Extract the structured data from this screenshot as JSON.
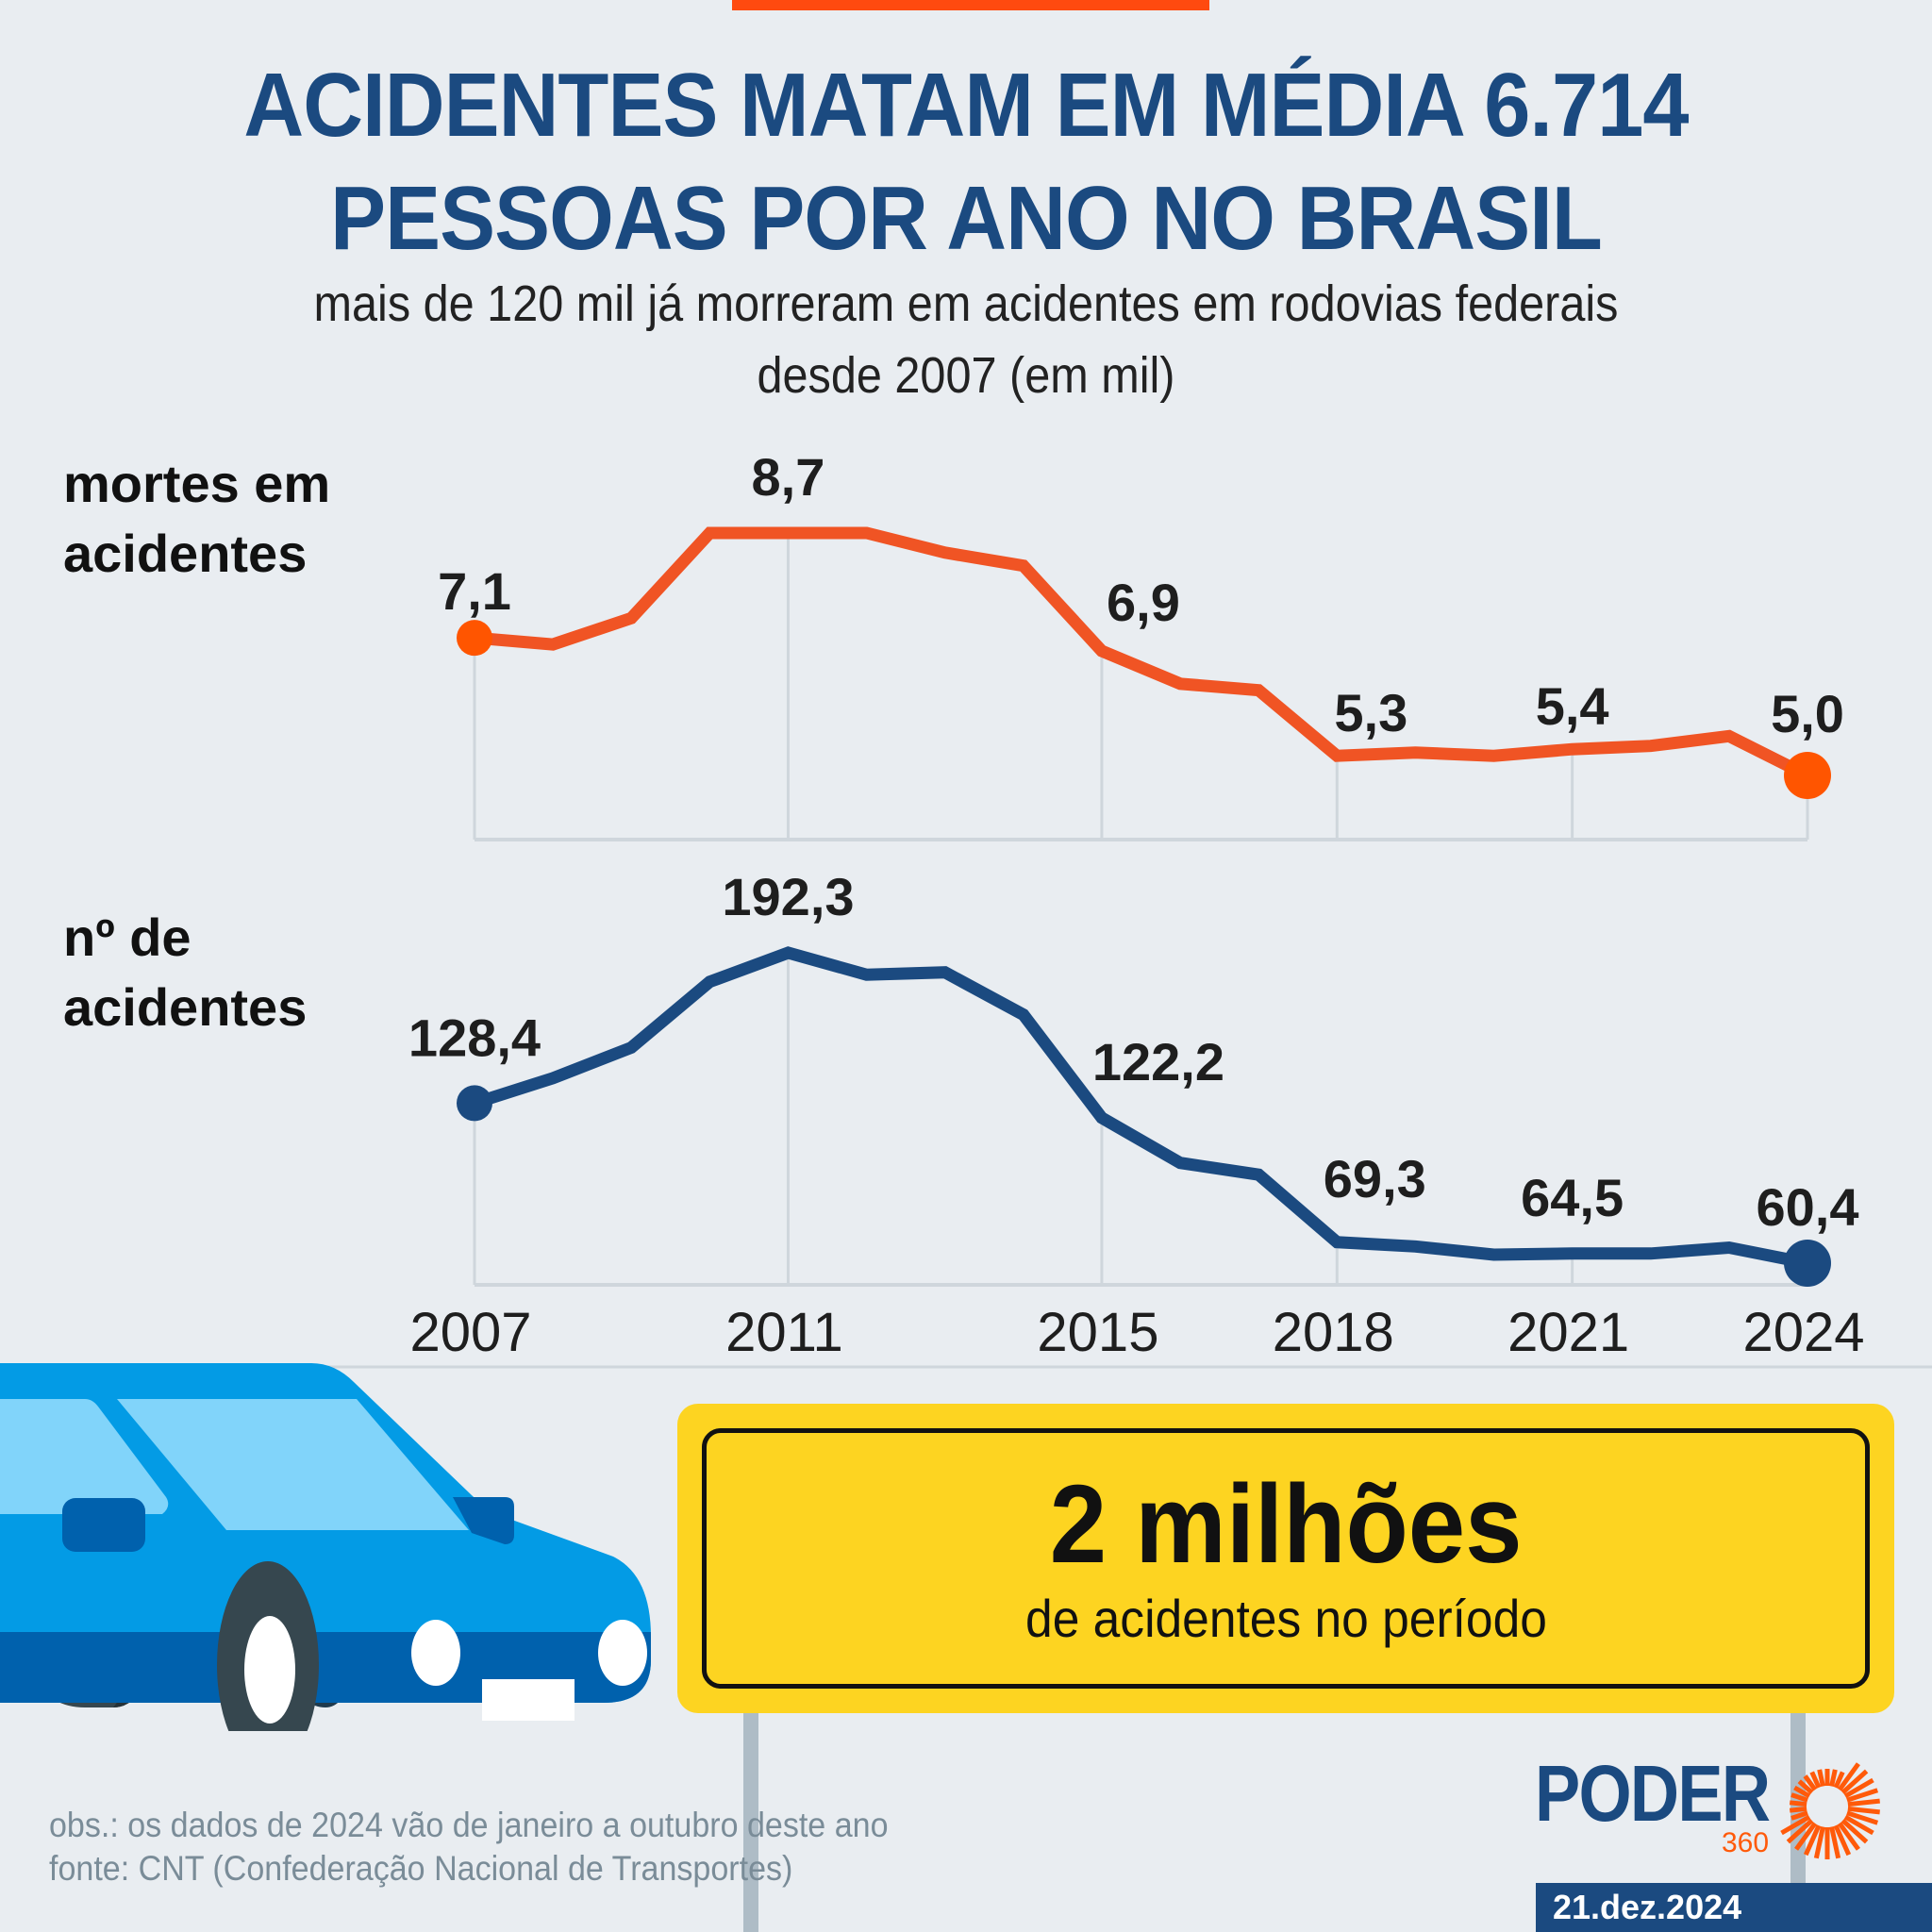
{
  "header": {
    "title_line1": "ACIDENTES MATAM EM MÉDIA 6.714",
    "title_line2": "PESSOAS POR ANO NO BRASIL",
    "subtitle_line1": "mais de 120 mil já morreram em acidentes em rodovias federais",
    "subtitle_line2": "desde 2007 (em mil)"
  },
  "colors": {
    "title": "#1b4a80",
    "deaths_line": "#f05424",
    "deaths_marker": "#ff5500",
    "accidents_line": "#1b4a80",
    "grid": "#cfd6dc",
    "sign": "#fdd421",
    "background": "#e9edf1"
  },
  "chart_data": [
    {
      "type": "line",
      "name": "mortes em acidentes",
      "label_line1": "mortes em",
      "label_line2": "acidentes",
      "unit": "mil",
      "x": [
        2007,
        2008,
        2009,
        2010,
        2011,
        2012,
        2013,
        2014,
        2015,
        2016,
        2017,
        2018,
        2019,
        2020,
        2021,
        2022,
        2023,
        2024
      ],
      "values": [
        7.1,
        7.0,
        7.4,
        8.7,
        8.7,
        8.7,
        8.4,
        8.2,
        6.9,
        6.4,
        6.3,
        5.3,
        5.35,
        5.3,
        5.4,
        5.45,
        5.6,
        5.0
      ],
      "data_labels": [
        {
          "year": 2007,
          "text": "7,1"
        },
        {
          "year": 2011,
          "text": "8,7"
        },
        {
          "year": 2015,
          "text": "6,9"
        },
        {
          "year": 2018,
          "text": "5,3"
        },
        {
          "year": 2021,
          "text": "5,4"
        },
        {
          "year": 2024,
          "text": "5,0"
        }
      ],
      "ylim": [
        3.5,
        9.5
      ],
      "grid_years": [
        2007,
        2011,
        2015,
        2018,
        2021,
        2024
      ]
    },
    {
      "type": "line",
      "name": "nº de acidentes",
      "label_line1": "nº de",
      "label_line2": "acidentes",
      "unit": "mil",
      "x": [
        2007,
        2008,
        2009,
        2010,
        2011,
        2012,
        2013,
        2014,
        2015,
        2016,
        2017,
        2018,
        2019,
        2020,
        2021,
        2022,
        2023,
        2024
      ],
      "values": [
        128.4,
        139,
        152,
        180,
        192.3,
        183,
        184,
        166,
        122.2,
        103,
        98,
        69.3,
        67.5,
        64,
        64.5,
        64.5,
        67,
        60.4
      ],
      "data_labels": [
        {
          "year": 2007,
          "text": "128,4"
        },
        {
          "year": 2011,
          "text": "192,3"
        },
        {
          "year": 2015,
          "text": "122,2"
        },
        {
          "year": 2018,
          "text": "69,3"
        },
        {
          "year": 2021,
          "text": "64,5"
        },
        {
          "year": 2024,
          "text": "60,4"
        }
      ],
      "ylim": [
        50,
        200
      ],
      "grid_years": [
        2007,
        2011,
        2015,
        2018,
        2021,
        2024
      ]
    }
  ],
  "x_axis": {
    "ticks": [
      "2007",
      "2011",
      "2015",
      "2018",
      "2021",
      "2024"
    ],
    "min": 2007,
    "max": 2024
  },
  "sign": {
    "big": "2 milhões",
    "small": "de acidentes no período"
  },
  "footer": {
    "obs": "obs.: os dados de 2024 vão de janeiro a outubro deste ano",
    "source": "fonte: CNT (Confederação Nacional de Transportes)",
    "logo_text": "PODER",
    "logo_sub": "360",
    "date": "21.dez.2024"
  }
}
